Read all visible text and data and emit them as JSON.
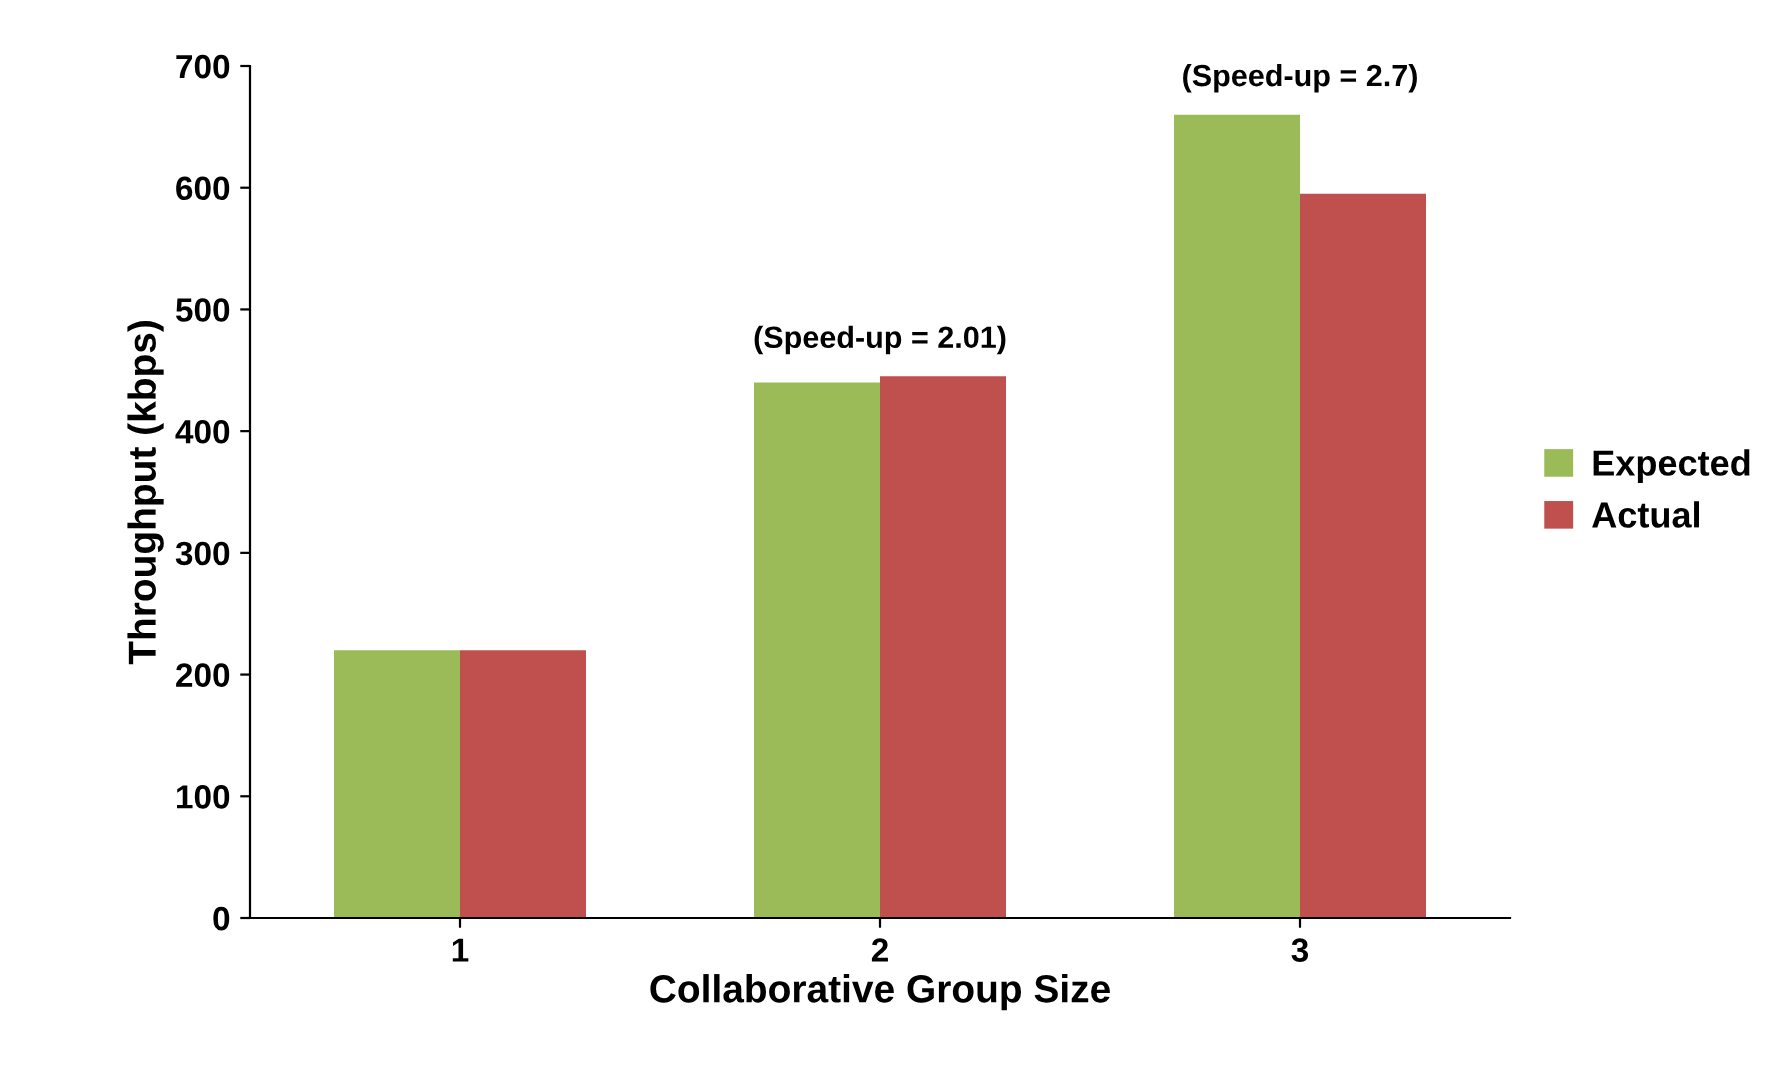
{
  "chart_data": {
    "type": "bar",
    "xlabel": "Collaborative Group Size",
    "ylabel": "Throughput (kbps)",
    "categories": [
      "1",
      "2",
      "3"
    ],
    "series": [
      {
        "name": "Expected",
        "color": "#9bbb59",
        "values": [
          220,
          440,
          660
        ]
      },
      {
        "name": "Actual",
        "color": "#c0504d",
        "values": [
          220,
          445,
          595
        ]
      }
    ],
    "ylim": [
      0,
      700
    ],
    "yticks": [
      0,
      100,
      200,
      300,
      400,
      500,
      600,
      700
    ],
    "grid": false,
    "legend": "right",
    "annotations": [
      {
        "text": "(Speed-up = 2.01)",
        "x": "2",
        "y": 445
      },
      {
        "text": "(Speed-up = 2.7)",
        "x": "3",
        "y": 660
      }
    ]
  }
}
